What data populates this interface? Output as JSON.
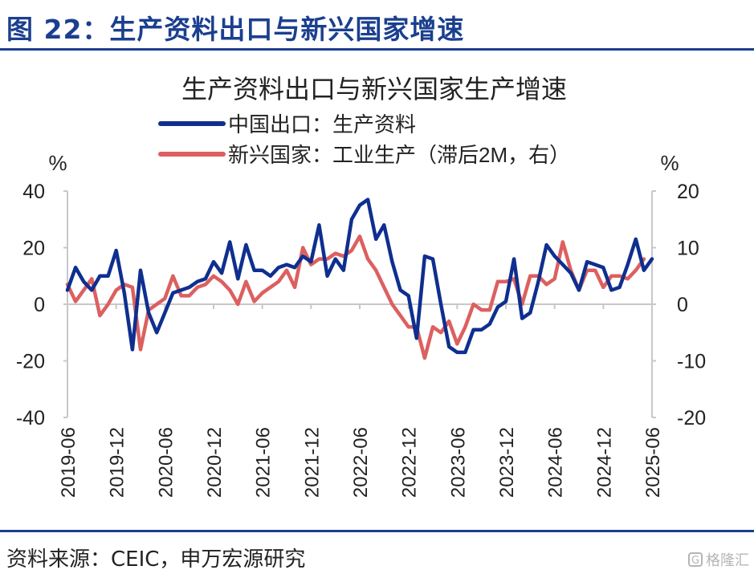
{
  "figure": {
    "title": "图 22：生产资料出口与新兴国家增速",
    "source": "资料来源：CEIC，申万宏源研究",
    "watermark": "格隆汇",
    "watermark_badge": "G"
  },
  "chart_data": {
    "type": "line",
    "title": "生产资料出口与新兴国家生产增速",
    "left_unit": "%",
    "right_unit": "%",
    "left_axis": {
      "ylim": [
        -40,
        40
      ],
      "ticks": [
        -40,
        -20,
        0,
        20,
        40
      ]
    },
    "right_axis": {
      "ylim": [
        -20,
        20
      ],
      "ticks": [
        -20,
        -10,
        0,
        10,
        20
      ]
    },
    "x_ticks": [
      "2019-06",
      "2019-12",
      "2020-06",
      "2020-12",
      "2021-06",
      "2021-12",
      "2022-06",
      "2022-12",
      "2023-06",
      "2023-12",
      "2024-06",
      "2024-12",
      "2025-06"
    ],
    "grid": false,
    "legend_position": "top",
    "series": [
      {
        "name": "中国出口：生产资料",
        "axis": "left",
        "color": "#0f2f8f",
        "start": "2019-06",
        "values": [
          5,
          13,
          8,
          5,
          10,
          10,
          19,
          4,
          -16,
          12,
          -3,
          -10,
          -3,
          4,
          5,
          6,
          8,
          9,
          15,
          11,
          22,
          9,
          21,
          12,
          12,
          10,
          13,
          14,
          13,
          17,
          15,
          28,
          10,
          16,
          12,
          30,
          35,
          37,
          23,
          28,
          15,
          5,
          3,
          -12,
          17,
          16,
          0,
          -15,
          -17,
          -17,
          -9,
          -9,
          -7,
          -1,
          1,
          16,
          -5,
          -3,
          8,
          21,
          17,
          14,
          11,
          5,
          15,
          14,
          13,
          5,
          6,
          14,
          23,
          12,
          16
        ]
      },
      {
        "name": "新兴国家：工业生产（滞后2M，右）",
        "axis": "right",
        "color": "#dc6060",
        "start": "2019-06",
        "values": [
          3.5,
          0.5,
          2.5,
          4.5,
          -2,
          0,
          2.5,
          3.5,
          3,
          -8,
          -1,
          0,
          1,
          5,
          1.5,
          1.5,
          3,
          3.5,
          5,
          4,
          2.5,
          0,
          4,
          0.5,
          2,
          3,
          4,
          6,
          3,
          10,
          7,
          8,
          8,
          9,
          8.5,
          9.5,
          12,
          8,
          6,
          3,
          0,
          -2,
          -4,
          -4,
          -9.5,
          -4,
          -5,
          -3,
          -7,
          -4,
          0,
          -1,
          -1,
          4,
          4,
          4.5,
          0,
          5,
          5,
          3.5,
          4.5,
          11,
          6,
          2.5,
          6,
          6,
          3,
          5,
          5,
          4.5,
          6,
          8
        ]
      }
    ]
  }
}
